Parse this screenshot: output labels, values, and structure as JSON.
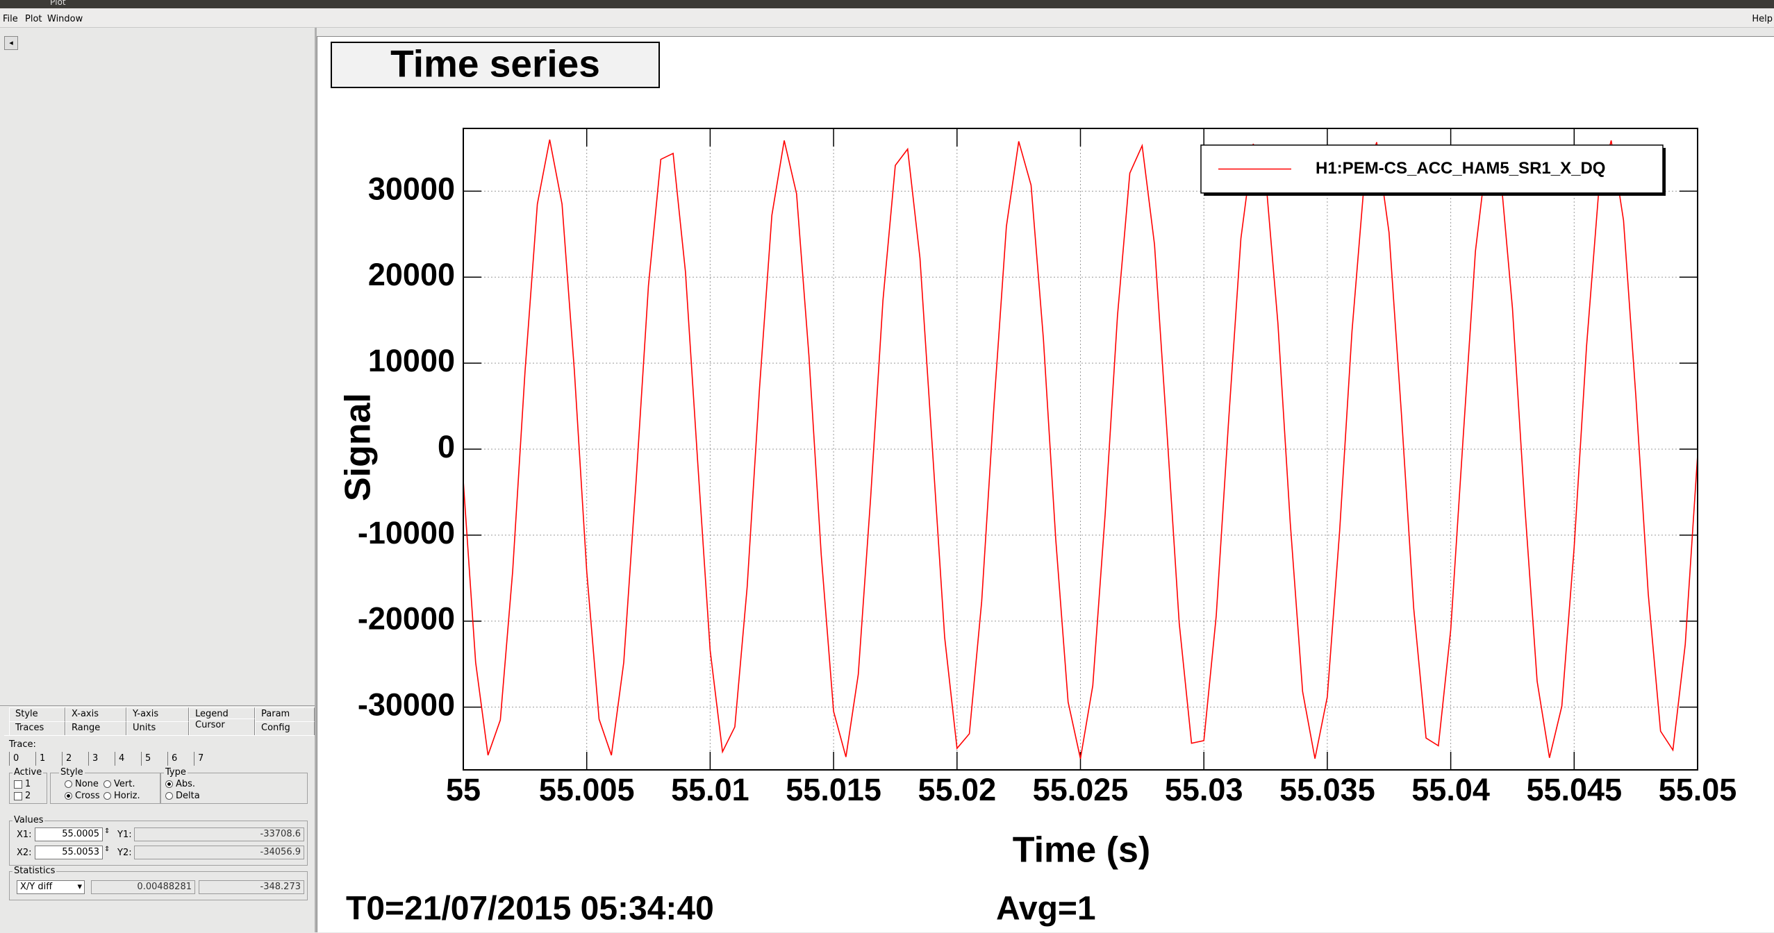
{
  "window": {
    "title": "Plot",
    "menu": [
      "File",
      "Plot",
      "Window"
    ],
    "help": "Help"
  },
  "panel": {
    "tabs_row1": [
      "Style",
      "X-axis",
      "Y-axis",
      "Legend",
      "Param"
    ],
    "tabs_row2": [
      "Traces",
      "Range",
      "Units",
      "Cursor",
      "Config"
    ],
    "trace_label": "Trace:",
    "traces": [
      "0",
      "1",
      "2",
      "3",
      "4",
      "5",
      "6",
      "7"
    ],
    "active": {
      "label": "Active",
      "items": [
        "1",
        "2"
      ]
    },
    "style": {
      "label": "Style",
      "options": [
        "None",
        "Vert.",
        "Cross",
        "Horiz."
      ]
    },
    "type": {
      "label": "Type",
      "options": [
        "Abs.",
        "Delta"
      ]
    },
    "values": {
      "label": "Values",
      "x1_label": "X1:",
      "x1": "55.0005",
      "y1_label": "Y1:",
      "y1": "-33708.6",
      "x2_label": "X2:",
      "x2": "55.0053",
      "y2_label": "Y2:",
      "y2": "-34056.9"
    },
    "statistics": {
      "label": "Statistics",
      "mode": "X/Y diff",
      "dx": "0.00488281",
      "dy": "-348.273"
    }
  },
  "chart_data": {
    "type": "line",
    "title": "Time series",
    "x_label": "Time (s)",
    "y_label": "Signal",
    "xlim": [
      55,
      55.05
    ],
    "ylim": [
      -37300,
      37300
    ],
    "xticks": [
      55,
      55.005,
      55.01,
      55.015,
      55.02,
      55.025,
      55.03,
      55.035,
      55.04,
      55.045,
      55.05
    ],
    "yticks": [
      -30000,
      -20000,
      -10000,
      0,
      10000,
      20000,
      30000
    ],
    "grid": true,
    "legend": "top-right",
    "x": [
      55,
      55.0005,
      55.001,
      55.0015,
      55.002,
      55.0025,
      55.003,
      55.0035,
      55.004,
      55.0045,
      55.005,
      55.0055,
      55.006,
      55.0065,
      55.007,
      55.0075,
      55.008,
      55.0085,
      55.009,
      55.0095,
      55.01,
      55.0105,
      55.011,
      55.0115,
      55.012,
      55.0125,
      55.013,
      55.0135,
      55.014,
      55.0145,
      55.015,
      55.0155,
      55.016,
      55.0165,
      55.017,
      55.0175,
      55.018,
      55.0185,
      55.019,
      55.0195,
      55.02,
      55.0205,
      55.021,
      55.0215,
      55.022,
      55.0225,
      55.023,
      55.0235,
      55.024,
      55.0245,
      55.025,
      55.0255,
      55.026,
      55.0265,
      55.027,
      55.0275,
      55.028,
      55.0285,
      55.029,
      55.0295,
      55.03,
      55.0305,
      55.031,
      55.0315,
      55.032,
      55.0325,
      55.033,
      55.0335,
      55.034,
      55.0345,
      55.035,
      55.0355,
      55.036,
      55.0365,
      55.037,
      55.0375,
      55.038,
      55.0385,
      55.039,
      55.0395,
      55.04,
      55.0405,
      55.041,
      55.0415,
      55.042,
      55.0425,
      55.043,
      55.0435,
      55.044,
      55.0445,
      55.045,
      55.0455,
      55.046,
      55.0465,
      55.047,
      55.0475,
      55.048,
      55.0485,
      55.049,
      55.0495,
      55.05
    ],
    "series": [
      {
        "name": "H1:PEM-CS_ACC_HAM5_SR1_X_DQ",
        "color": "#ff0000",
        "values": [
          -3700,
          -24800,
          -35600,
          -31500,
          -14200,
          9000,
          28500,
          36000,
          28500,
          9100,
          -14200,
          -31400,
          -35600,
          -24800,
          -3700,
          19000,
          33700,
          34400,
          20600,
          -1700,
          -23400,
          -35200,
          -32300,
          -16000,
          7100,
          27200,
          35900,
          29700,
          10900,
          -12300,
          -30500,
          -35800,
          -26200,
          -5700,
          17300,
          33000,
          34900,
          22200,
          200,
          -21900,
          -34800,
          -33100,
          -17700,
          5200,
          25900,
          35800,
          30700,
          12800,
          -10500,
          -29400,
          -36000,
          -27500,
          -7600,
          15500,
          32100,
          35300,
          23800,
          2200,
          -20200,
          -34200,
          -33900,
          -19400,
          3200,
          24500,
          35500,
          31700,
          14600,
          -8600,
          -28200,
          -36000,
          -28800,
          -9500,
          13700,
          31200,
          35700,
          25200,
          4200,
          -18500,
          -33600,
          -34500,
          -21000,
          1200,
          23000,
          35100,
          32600,
          16400,
          -6600,
          -27000,
          -35900,
          -29900,
          -11400,
          11900,
          30200,
          35900,
          26600,
          6100,
          -16800,
          -32800,
          -35000,
          -22700,
          -700
        ]
      }
    ]
  },
  "footer": {
    "t0": "T0=21/07/2015 05:34:40",
    "avg": "Avg=1"
  }
}
